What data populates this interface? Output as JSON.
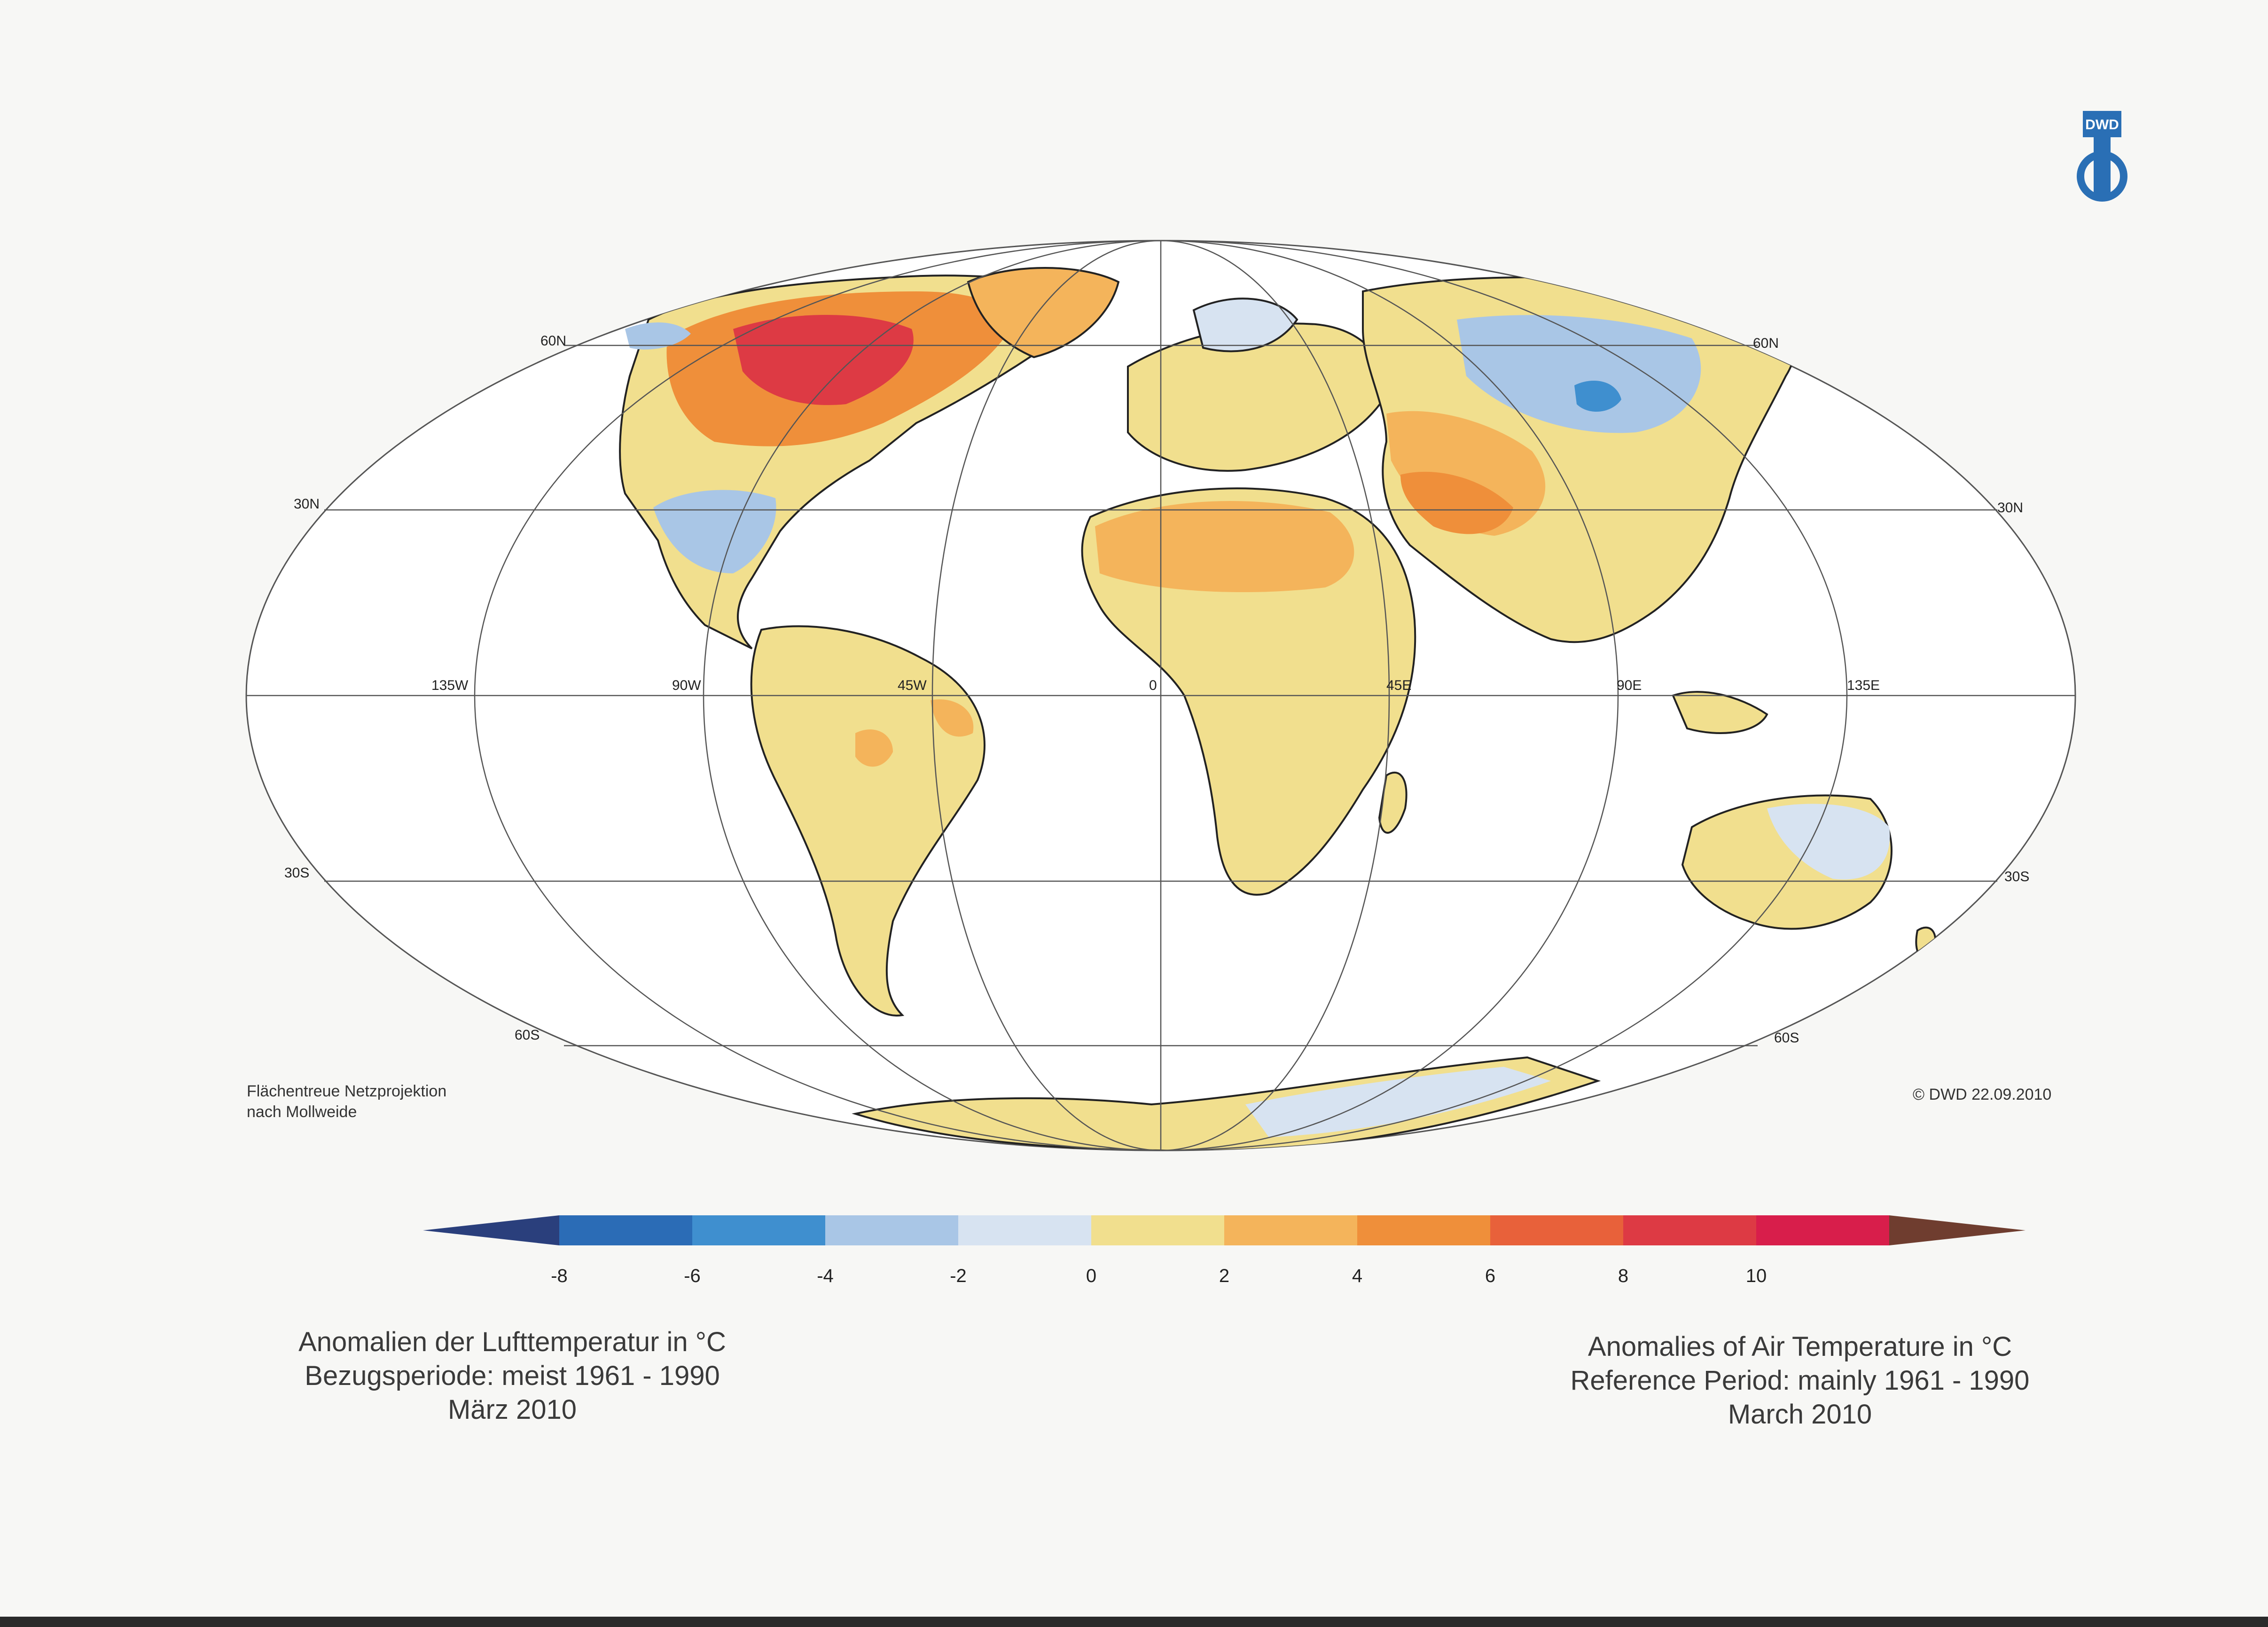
{
  "logo": {
    "text": "DWD",
    "color": "#2a6fb5"
  },
  "map": {
    "projection": "mollweide",
    "lat_labels": {
      "left": [
        "60N",
        "30N",
        "30S",
        "60S"
      ],
      "right": [
        "60N",
        "30N",
        "30S",
        "60S"
      ]
    },
    "lon_labels": [
      "135W",
      "90W",
      "45W",
      "0",
      "45E",
      "90E",
      "135E"
    ],
    "ocean_color": "#ffffff",
    "graticule_color": "#555555"
  },
  "projection_note": {
    "line1": "Flächentreue Netzprojektion",
    "line2": "nach Mollweide"
  },
  "copyright": "© DWD 22.09.2010",
  "colorbar": {
    "tick_labels": [
      "-8",
      "-6",
      "-4",
      "-2",
      "0",
      "2",
      "4",
      "6",
      "8",
      "10"
    ],
    "colors": [
      "#2a3f7c",
      "#2b6cb6",
      "#3f8fcf",
      "#a9c6e6",
      "#d7e3f1",
      "#f1df8e",
      "#f4b45b",
      "#ef8f3a",
      "#e8613a",
      "#dd3a44",
      "#d81e4b",
      "#6f3d2f"
    ]
  },
  "caption_de": {
    "line1": "Anomalien der Lufttemperatur in °C",
    "line2": "Bezugsperiode: meist 1961 - 1990",
    "line3": "März 2010"
  },
  "caption_en": {
    "line1": "Anomalies of Air Temperature in °C",
    "line2": "Reference Period: mainly 1961 - 1990",
    "line3": "March 2010"
  }
}
